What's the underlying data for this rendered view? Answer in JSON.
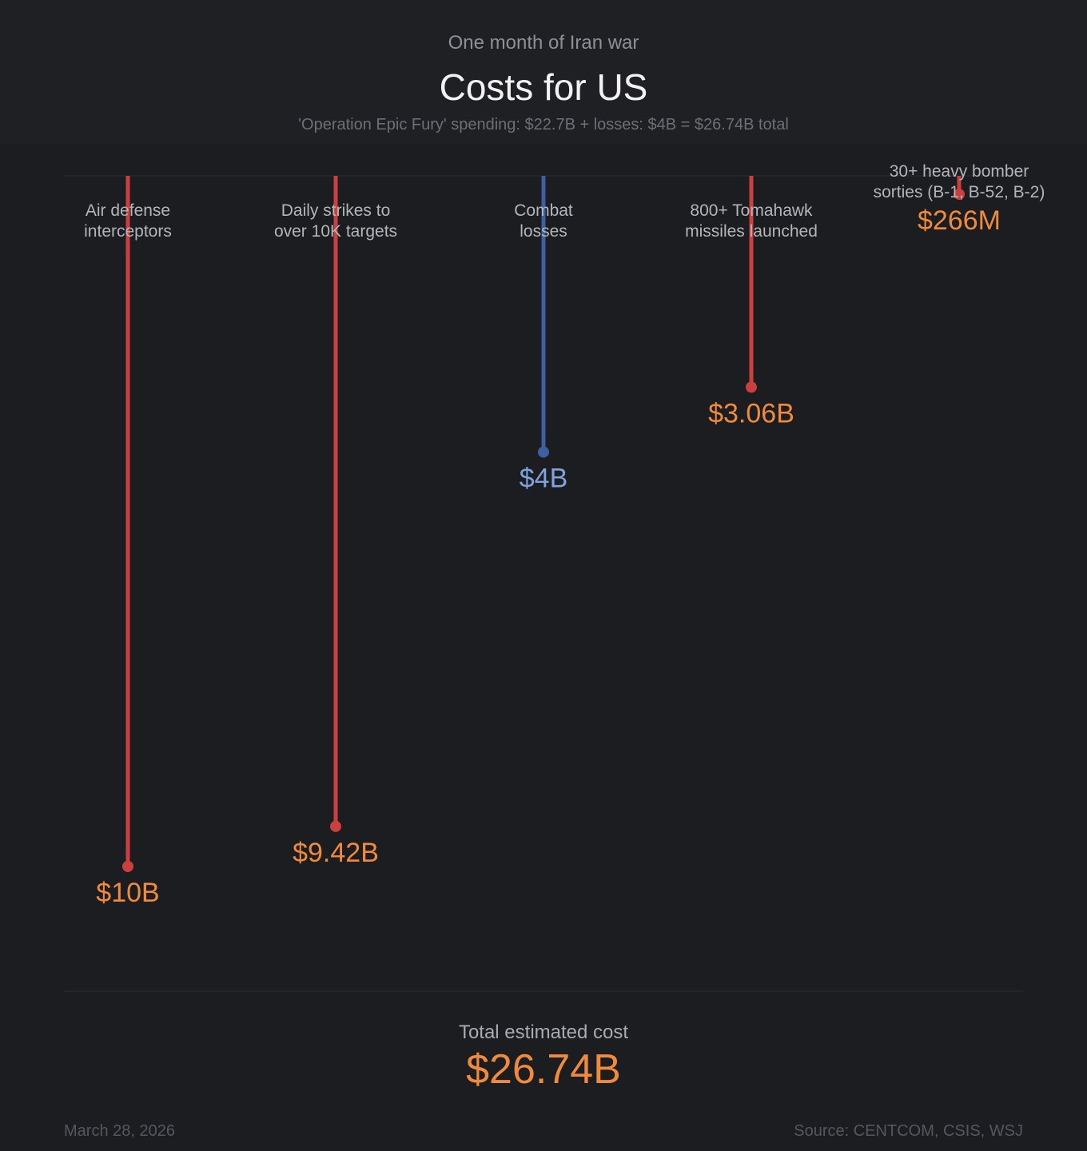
{
  "header": {
    "kicker": "One month of Iran war",
    "title": "Costs for US",
    "subtitle": "'Operation Epic Fury' spending: $22.7B + losses: $4B = $26.74B total"
  },
  "chart_data": {
    "type": "bar",
    "orientation": "vertical-lollipop-hanging",
    "categories": [
      [
        "Air defense",
        "interceptors"
      ],
      [
        "Daily strikes to",
        "over 10K targets"
      ],
      [
        "Combat",
        "losses"
      ],
      [
        "800+ Tomahawk",
        "missiles launched"
      ],
      [
        "30+ heavy bomber",
        "sorties (B-1, B-52, B-2)"
      ]
    ],
    "values_usd_billions": [
      10,
      9.42,
      4,
      3.06,
      0.266
    ],
    "value_labels": [
      "$10B",
      "$9.42B",
      "$4B",
      "$3.06B",
      "$266M"
    ],
    "bar_kind": [
      "spending",
      "spending",
      "losses",
      "spending",
      "spending"
    ],
    "ylim": [
      0,
      10
    ],
    "grid": false,
    "legend": "none"
  },
  "colors": {
    "spending": "#cc3f3f",
    "losses": "#3e5fa0",
    "spending_label": "#f08a3c",
    "losses_label": "#7ea3de",
    "category_label": "#b3b5ba",
    "baseline": "#2a2d32"
  },
  "total": {
    "label": "Total estimated cost",
    "value": "$26.74B"
  },
  "footer": {
    "date": "March 28, 2026",
    "source": "Source: CENTCOM, CSIS, WSJ"
  }
}
